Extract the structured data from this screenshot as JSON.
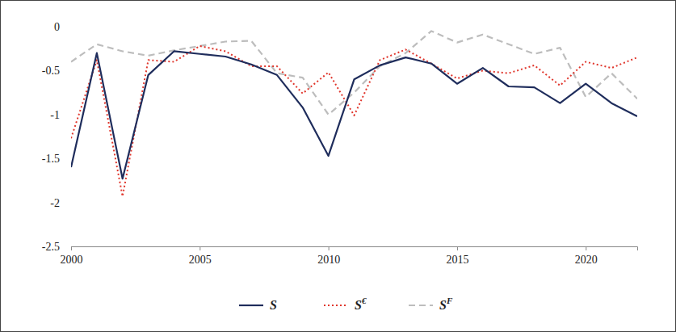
{
  "chart_data": {
    "type": "line",
    "x": [
      2000,
      2001,
      2002,
      2003,
      2004,
      2005,
      2006,
      2007,
      2008,
      2009,
      2010,
      2011,
      2012,
      2013,
      2014,
      2015,
      2016,
      2017,
      2018,
      2019,
      2020,
      2021,
      2022
    ],
    "xlim": [
      2000,
      2022
    ],
    "xticks": [
      2000,
      2005,
      2010,
      2015,
      2020
    ],
    "ylim": [
      -2.5,
      0
    ],
    "yticks": [
      -2.5,
      -2,
      -1.5,
      -1,
      -0.5,
      0
    ],
    "grid": false,
    "legend": "bottom",
    "series": [
      {
        "name": "S",
        "color": "#1f2d5c",
        "line_style": "solid",
        "values": [
          -1.6,
          -0.3,
          -1.73,
          -0.55,
          -0.28,
          -0.31,
          -0.34,
          -0.43,
          -0.55,
          -0.92,
          -1.47,
          -0.6,
          -0.44,
          -0.35,
          -0.42,
          -0.65,
          -0.47,
          -0.68,
          -0.69,
          -0.87,
          -0.65,
          -0.87,
          -1.02
        ]
      },
      {
        "name": "S€",
        "color": "#e0362c",
        "line_style": "dotted",
        "values": [
          -1.27,
          -0.38,
          -1.93,
          -0.38,
          -0.4,
          -0.22,
          -0.28,
          -0.45,
          -0.45,
          -0.76,
          -0.52,
          -1.01,
          -0.38,
          -0.26,
          -0.42,
          -0.59,
          -0.5,
          -0.53,
          -0.44,
          -0.67,
          -0.4,
          -0.47,
          -0.35
        ]
      },
      {
        "name": "SF",
        "color": "#bdbdbd",
        "line_style": "dashed",
        "values": [
          -0.4,
          -0.2,
          -0.28,
          -0.33,
          -0.27,
          -0.22,
          -0.17,
          -0.16,
          -0.53,
          -0.58,
          -1.0,
          -0.75,
          -0.45,
          -0.3,
          -0.05,
          -0.18,
          -0.09,
          -0.2,
          -0.31,
          -0.24,
          -0.8,
          -0.53,
          -0.82
        ]
      }
    ]
  }
}
